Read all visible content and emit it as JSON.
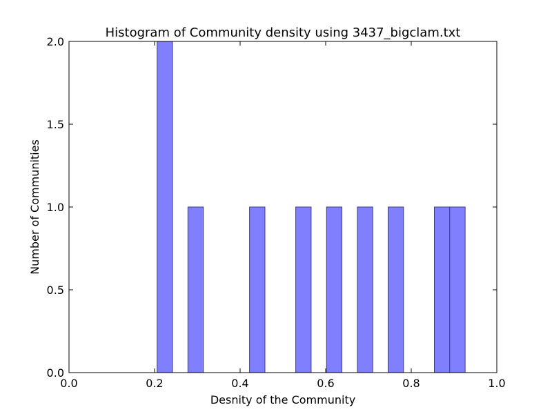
{
  "chart_data": {
    "type": "bar",
    "title": "Histogram of Community density using 3437_bigclam.txt",
    "xlabel": "Desnity of the Community",
    "ylabel": "Number of Communities",
    "xlim": [
      0.0,
      1.0
    ],
    "ylim": [
      0.0,
      2.0
    ],
    "xticks": [
      "0.0",
      "0.2",
      "0.4",
      "0.6",
      "0.8",
      "1.0"
    ],
    "yticks": [
      "0.0",
      "0.5",
      "1.0",
      "1.5",
      "2.0"
    ],
    "bin_width": 0.036,
    "bins": [
      {
        "x0": 0.206,
        "count": 2
      },
      {
        "x0": 0.278,
        "count": 1
      },
      {
        "x0": 0.422,
        "count": 1
      },
      {
        "x0": 0.53,
        "count": 1
      },
      {
        "x0": 0.602,
        "count": 1
      },
      {
        "x0": 0.674,
        "count": 1
      },
      {
        "x0": 0.746,
        "count": 1
      },
      {
        "x0": 0.854,
        "count": 1
      },
      {
        "x0": 0.89,
        "count": 1
      }
    ],
    "bar_color": "#8080ff",
    "bar_edge_color": "#3a3a7a",
    "grid": false,
    "legend": "none"
  }
}
